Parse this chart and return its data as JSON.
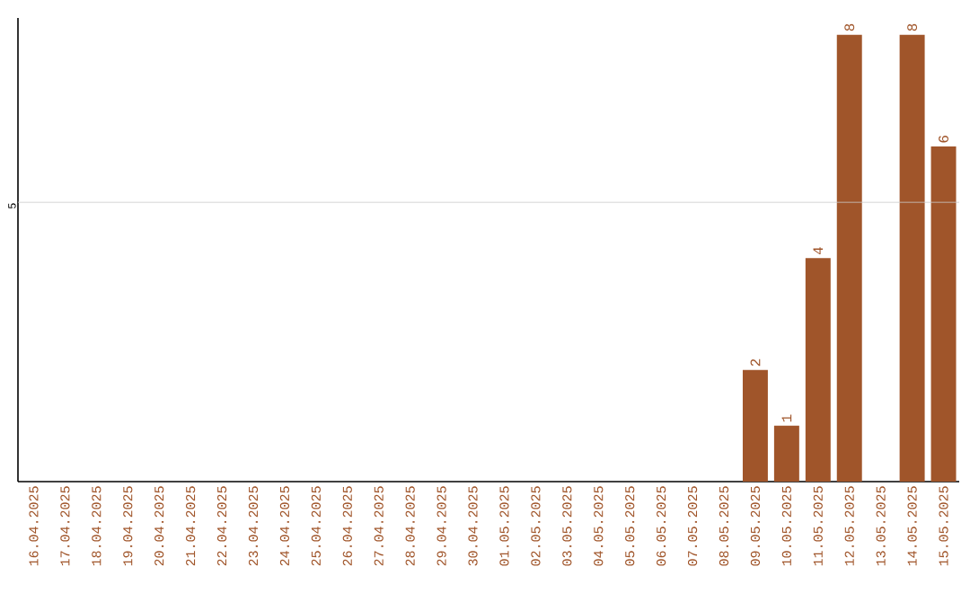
{
  "chart_data": {
    "type": "bar",
    "categories": [
      "16.04.2025",
      "17.04.2025",
      "18.04.2025",
      "19.04.2025",
      "20.04.2025",
      "21.04.2025",
      "22.04.2025",
      "23.04.2025",
      "24.04.2025",
      "25.04.2025",
      "26.04.2025",
      "27.04.2025",
      "28.04.2025",
      "29.04.2025",
      "30.04.2025",
      "01.05.2025",
      "02.05.2025",
      "03.05.2025",
      "04.05.2025",
      "05.05.2025",
      "06.05.2025",
      "07.05.2025",
      "08.05.2025",
      "09.05.2025",
      "10.05.2025",
      "11.05.2025",
      "12.05.2025",
      "13.05.2025",
      "14.05.2025",
      "15.05.2025"
    ],
    "values": [
      null,
      null,
      null,
      null,
      null,
      null,
      null,
      null,
      null,
      null,
      null,
      null,
      null,
      null,
      null,
      null,
      null,
      null,
      null,
      null,
      null,
      null,
      null,
      2,
      1,
      4,
      8,
      null,
      8,
      6
    ],
    "data_labels": true,
    "color": "#a0552a",
    "ylim": [
      0,
      8.3
    ],
    "ref_lines": [
      {
        "axis": "y",
        "value": 5,
        "label": "5",
        "color": "#cccccc"
      }
    ]
  }
}
